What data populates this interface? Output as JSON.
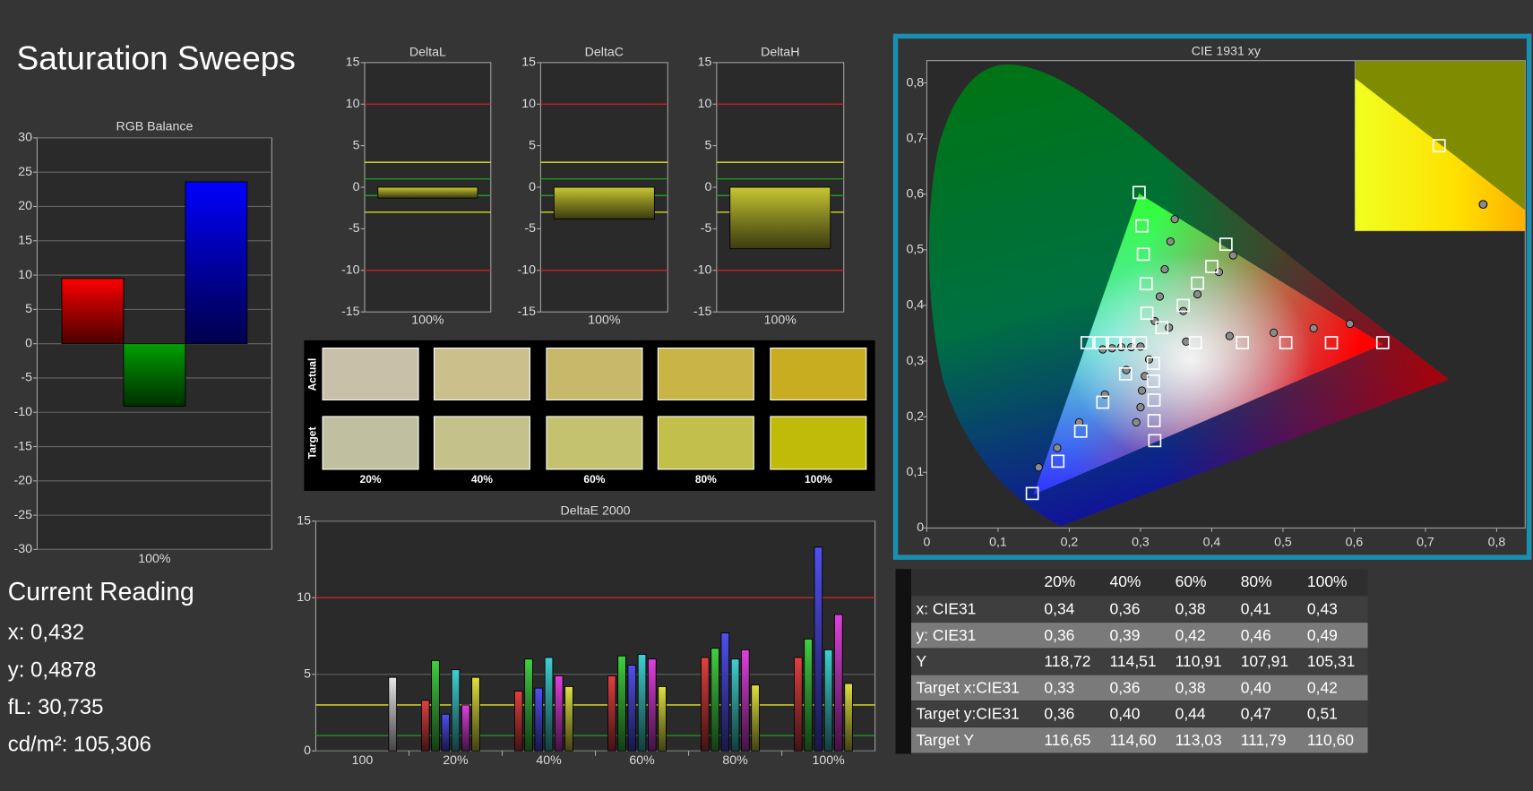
{
  "title": "Saturation Sweeps",
  "chart_data": [
    {
      "type": "bar",
      "title": "RGB Balance",
      "categories": [
        "100%"
      ],
      "series": [
        {
          "color": "#ff0000",
          "values": [
            9.5
          ]
        },
        {
          "color": "#00a000",
          "values": [
            -9.1
          ]
        },
        {
          "color": "#0000ff",
          "values": [
            23.6
          ]
        }
      ],
      "ylim": [
        -30,
        30
      ],
      "yticks": [
        -30,
        -25,
        -20,
        -15,
        -10,
        -5,
        0,
        5,
        10,
        15,
        20,
        25,
        30
      ],
      "grid": true
    },
    {
      "type": "bar",
      "title": "DeltaL",
      "categories": [
        "100%"
      ],
      "values": [
        -1.3
      ],
      "color": "#c8c832",
      "ylim": [
        -15,
        15
      ],
      "yticks": [
        -15,
        -10,
        -5,
        0,
        5,
        10,
        15
      ],
      "grid": false,
      "reference_lines": [
        {
          "value": 10,
          "color": "#d02020"
        },
        {
          "value": -10,
          "color": "#d02020"
        },
        {
          "value": 3,
          "color": "#e6e620"
        },
        {
          "value": -3,
          "color": "#e6e620"
        },
        {
          "value": 1,
          "color": "#20a020"
        },
        {
          "value": -1,
          "color": "#20a020"
        }
      ]
    },
    {
      "type": "bar",
      "title": "DeltaC",
      "categories": [
        "100%"
      ],
      "values": [
        -3.8
      ],
      "color": "#c8c832",
      "ylim": [
        -15,
        15
      ],
      "yticks": [
        -15,
        -10,
        -5,
        0,
        5,
        10,
        15
      ],
      "grid": false,
      "reference_lines": [
        {
          "value": 10,
          "color": "#d02020"
        },
        {
          "value": -10,
          "color": "#d02020"
        },
        {
          "value": 3,
          "color": "#e6e620"
        },
        {
          "value": -3,
          "color": "#e6e620"
        },
        {
          "value": 1,
          "color": "#20a020"
        },
        {
          "value": -1,
          "color": "#20a020"
        }
      ]
    },
    {
      "type": "bar",
      "title": "DeltaH",
      "categories": [
        "100%"
      ],
      "values": [
        -7.4
      ],
      "color": "#c8c832",
      "ylim": [
        -15,
        15
      ],
      "yticks": [
        -15,
        -10,
        -5,
        0,
        5,
        10,
        15
      ],
      "grid": false,
      "reference_lines": [
        {
          "value": 10,
          "color": "#d02020"
        },
        {
          "value": -10,
          "color": "#d02020"
        },
        {
          "value": 3,
          "color": "#e6e620"
        },
        {
          "value": -3,
          "color": "#e6e620"
        },
        {
          "value": 1,
          "color": "#20a020"
        },
        {
          "value": -1,
          "color": "#20a020"
        }
      ]
    },
    {
      "type": "bar",
      "title": "DeltaE 2000",
      "categories": [
        "100",
        "20%",
        "40%",
        "60%",
        "80%",
        "100%"
      ],
      "series": [
        {
          "color": "#e04040",
          "values": [
            null,
            3.3,
            3.9,
            4.9,
            6.1,
            6.1
          ]
        },
        {
          "color": "#40d040",
          "values": [
            null,
            5.9,
            6.0,
            6.2,
            6.7,
            7.3
          ]
        },
        {
          "color": "#5050f0",
          "values": [
            null,
            2.4,
            4.1,
            5.6,
            7.7,
            13.3
          ]
        },
        {
          "color": "#40d0d0",
          "values": [
            null,
            5.3,
            6.1,
            6.3,
            6.0,
            6.6
          ]
        },
        {
          "color": "#e040e0",
          "values": [
            null,
            3.0,
            4.9,
            6.0,
            6.6,
            8.9
          ]
        },
        {
          "color": "#e0e040",
          "values": [
            null,
            4.8,
            4.2,
            4.2,
            4.3,
            4.4
          ]
        },
        {
          "color": "#e8e8e8",
          "values": [
            4.8,
            null,
            null,
            null,
            null,
            null
          ]
        }
      ],
      "ylim": [
        0,
        15
      ],
      "yticks": [
        0,
        5,
        10,
        15
      ],
      "grid": true,
      "reference_lines": [
        {
          "value": 10,
          "color": "#d02020"
        },
        {
          "value": 3,
          "color": "#e6e620"
        },
        {
          "value": 1,
          "color": "#20a020"
        }
      ]
    },
    {
      "type": "scatter",
      "title": "CIE 1931 xy",
      "xlim": [
        0,
        0.84
      ],
      "ylim": [
        0,
        0.84
      ],
      "xticks": [
        0,
        {
          "value": 0.1,
          "label": "0,1"
        },
        {
          "value": 0.2,
          "label": "0,2"
        },
        {
          "value": 0.3,
          "label": "0,3"
        },
        {
          "value": 0.4,
          "label": "0,4"
        },
        {
          "value": 0.5,
          "label": "0,5"
        },
        {
          "value": 0.6,
          "label": "0,6"
        },
        {
          "value": 0.7,
          "label": "0,7"
        },
        {
          "value": 0.8,
          "label": "0,8"
        }
      ],
      "yticks": [
        0,
        {
          "value": 0.1,
          "label": "0,1"
        },
        {
          "value": 0.2,
          "label": "0,2"
        },
        {
          "value": 0.3,
          "label": "0,3"
        },
        {
          "value": 0.4,
          "label": "0,4"
        },
        {
          "value": 0.5,
          "label": "0,5"
        },
        {
          "value": 0.6,
          "label": "0,6"
        },
        {
          "value": 0.7,
          "label": "0,7"
        },
        {
          "value": 0.8,
          "label": "0,8"
        }
      ],
      "series": [
        {
          "marker": "circle",
          "color": "#8a8a8a",
          "x": [
            0.364,
            0.425,
            0.487,
            0.543,
            0.594,
            0.32,
            0.327,
            0.334,
            0.342,
            0.348,
            0.28,
            0.25,
            0.214,
            0.183,
            0.157,
            0.3,
            0.287,
            0.273,
            0.26,
            0.247,
            0.312,
            0.306,
            0.302,
            0.3,
            0.294,
            0.34,
            0.36,
            0.38,
            0.41,
            0.43
          ],
          "y": [
            0.335,
            0.345,
            0.351,
            0.359,
            0.367,
            0.372,
            0.416,
            0.465,
            0.515,
            0.555,
            0.284,
            0.24,
            0.19,
            0.144,
            0.109,
            0.326,
            0.325,
            0.325,
            0.323,
            0.321,
            0.303,
            0.273,
            0.247,
            0.217,
            0.19,
            0.36,
            0.39,
            0.42,
            0.46,
            0.49
          ]
        },
        {
          "marker": "square",
          "color": "#ffffff",
          "x": [
            0.377,
            0.443,
            0.504,
            0.568,
            0.64,
            0.309,
            0.308,
            0.304,
            0.302,
            0.298,
            0.279,
            0.247,
            0.216,
            0.184,
            0.148,
            0.3,
            0.281,
            0.263,
            0.244,
            0.225,
            0.318,
            0.318,
            0.319,
            0.319,
            0.32,
            0.33,
            0.36,
            0.38,
            0.4,
            0.42
          ],
          "y": [
            0.333,
            0.333,
            0.333,
            0.333,
            0.333,
            0.386,
            0.439,
            0.492,
            0.543,
            0.603,
            0.277,
            0.226,
            0.174,
            0.12,
            0.062,
            0.333,
            0.333,
            0.333,
            0.333,
            0.333,
            0.296,
            0.264,
            0.23,
            0.193,
            0.157,
            0.36,
            0.4,
            0.44,
            0.47,
            0.51
          ]
        }
      ]
    }
  ],
  "swatches": {
    "row_labels": [
      "Actual",
      "Target"
    ],
    "columns": [
      "20%",
      "40%",
      "60%",
      "80%",
      "100%"
    ],
    "actual": [
      "#c8c0a8",
      "#cbbf8c",
      "#c8b86a",
      "#c8b545",
      "#c8ad20"
    ],
    "target": [
      "#c0c0a0",
      "#c4c28a",
      "#c4c26e",
      "#c2c04a",
      "#bfbb08"
    ]
  },
  "current_reading": {
    "title": "Current Reading",
    "lines": [
      "x: 0,432",
      "y: 0,4878",
      "fL: 30,735",
      "cd/m²: 105,306"
    ]
  },
  "table": {
    "columns": [
      "20%",
      "40%",
      "60%",
      "80%",
      "100%"
    ],
    "rows": [
      {
        "label": "x: CIE31",
        "cells": [
          "0,34",
          "0,36",
          "0,38",
          "0,41",
          "0,43"
        ]
      },
      {
        "label": "y: CIE31",
        "cells": [
          "0,36",
          "0,39",
          "0,42",
          "0,46",
          "0,49"
        ]
      },
      {
        "label": "Y",
        "cells": [
          "118,72",
          "114,51",
          "110,91",
          "107,91",
          "105,31"
        ]
      },
      {
        "label": "Target x:CIE31",
        "cells": [
          "0,33",
          "0,36",
          "0,38",
          "0,40",
          "0,42"
        ]
      },
      {
        "label": "Target y:CIE31",
        "cells": [
          "0,36",
          "0,40",
          "0,44",
          "0,47",
          "0,51"
        ]
      },
      {
        "label": "Target Y",
        "cells": [
          "116,65",
          "114,60",
          "113,03",
          "111,79",
          "110,60"
        ]
      }
    ]
  }
}
